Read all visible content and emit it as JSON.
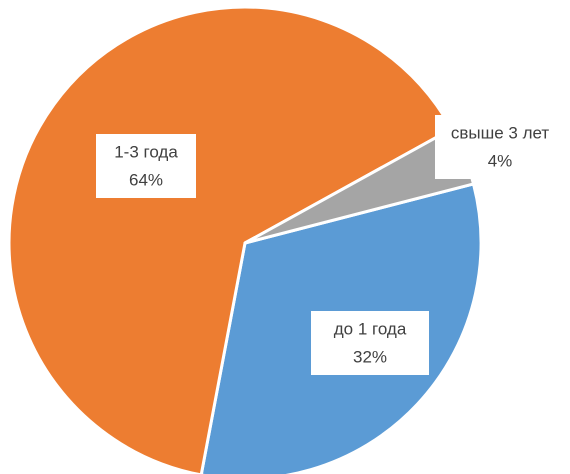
{
  "chart_data": {
    "type": "pie",
    "categories": [
      "до 1 года",
      "1-3 года",
      "свыше 3 лет"
    ],
    "values": [
      32,
      64,
      4
    ],
    "value_labels": [
      "32%",
      "64%",
      "4%"
    ],
    "colors": [
      "#5b9bd5",
      "#ed7d31",
      "#a5a5a5"
    ]
  }
}
